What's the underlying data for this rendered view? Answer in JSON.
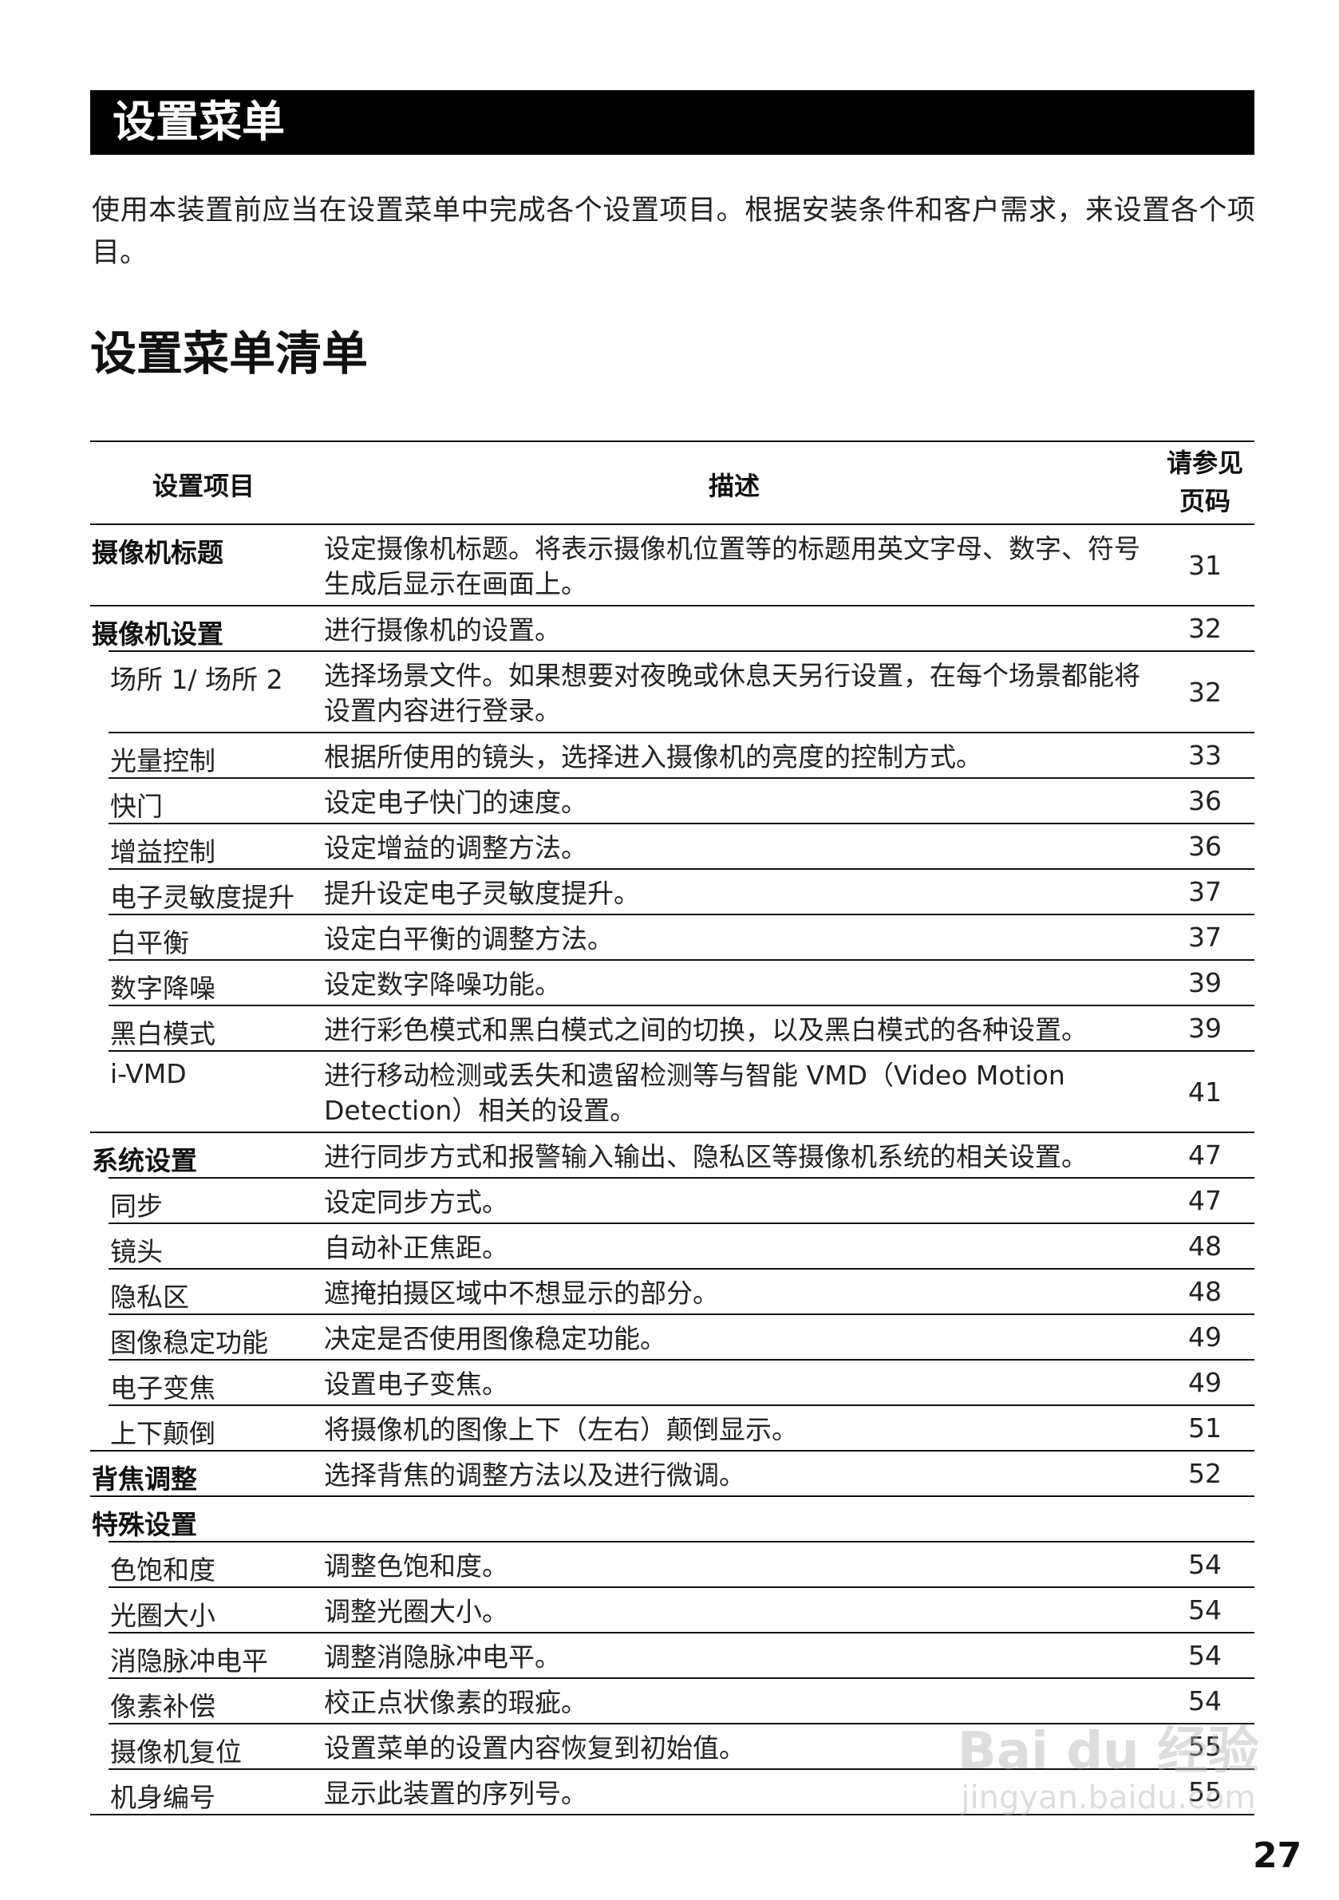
{
  "header": {
    "title": "设置菜单"
  },
  "intro": "使用本装置前应当在设置菜单中完成各个设置项目。根据安装条件和客户需求，来设置各个项目。",
  "section_title": "设置菜单清单",
  "table": {
    "columns": [
      "设置项目",
      "描述",
      "请参见页码"
    ],
    "rows": [
      {
        "level": "main",
        "item": "摄像机标题",
        "desc": "设定摄像机标题。将表示摄像机位置等的标题用英文字母、数字、符号生成后显示在画面上。",
        "page": "31",
        "lines": 2
      },
      {
        "level": "main",
        "item": "摄像机设置",
        "desc": "进行摄像机的设置。",
        "page": "32",
        "lines": 1
      },
      {
        "level": "sub",
        "item": "场所 1/ 场所 2",
        "desc": "选择场景文件。如果想要对夜晚或休息天另行设置，在每个场景都能将设置内容进行登录。",
        "page": "32",
        "lines": 2
      },
      {
        "level": "sub",
        "item": "光量控制",
        "desc": "根据所使用的镜头，选择进入摄像机的亮度的控制方式。",
        "page": "33",
        "lines": 1
      },
      {
        "level": "sub",
        "item": "快门",
        "desc": "设定电子快门的速度。",
        "page": "36",
        "lines": 1
      },
      {
        "level": "sub",
        "item": "增益控制",
        "desc": "设定增益的调整方法。",
        "page": "36",
        "lines": 1
      },
      {
        "level": "sub",
        "item": "电子灵敏度提升",
        "desc": "提升设定电子灵敏度提升。",
        "page": "37",
        "lines": 1
      },
      {
        "level": "sub",
        "item": "白平衡",
        "desc": "设定白平衡的调整方法。",
        "page": "37",
        "lines": 1
      },
      {
        "level": "sub",
        "item": "数字降噪",
        "desc": "设定数字降噪功能。",
        "page": "39",
        "lines": 1
      },
      {
        "level": "sub",
        "item": "黑白模式",
        "desc": "进行彩色模式和黑白模式之间的切换，以及黑白模式的各种设置。",
        "page": "39",
        "lines": 1
      },
      {
        "level": "sub",
        "item": "i-VMD",
        "desc": "进行移动检测或丢失和遗留检测等与智能 VMD（Video Motion Detection）相关的设置。",
        "page": "41",
        "lines": 2
      },
      {
        "level": "main",
        "item": "系统设置",
        "desc": "进行同步方式和报警输入输出、隐私区等摄像机系统的相关设置。",
        "page": "47",
        "lines": 1
      },
      {
        "level": "sub",
        "item": "同步",
        "desc": "设定同步方式。",
        "page": "47",
        "lines": 1
      },
      {
        "level": "sub",
        "item": "镜头",
        "desc": "自动补正焦距。",
        "page": "48",
        "lines": 1
      },
      {
        "level": "sub",
        "item": "隐私区",
        "desc": "遮掩拍摄区域中不想显示的部分。",
        "page": "48",
        "lines": 1
      },
      {
        "level": "sub",
        "item": "图像稳定功能",
        "desc": "决定是否使用图像稳定功能。",
        "page": "49",
        "lines": 1
      },
      {
        "level": "sub",
        "item": "电子变焦",
        "desc": "设置电子变焦。",
        "page": "49",
        "lines": 1
      },
      {
        "level": "sub",
        "item": "上下颠倒",
        "desc": "将摄像机的图像上下（左右）颠倒显示。",
        "page": "51",
        "lines": 1
      },
      {
        "level": "main",
        "item": "背焦调整",
        "desc": "选择背焦的调整方法以及进行微调。",
        "page": "52",
        "lines": 1
      },
      {
        "level": "main",
        "item": "特殊设置",
        "desc": "",
        "page": "",
        "lines": 1
      },
      {
        "level": "sub",
        "item": "色饱和度",
        "desc": "调整色饱和度。",
        "page": "54",
        "lines": 1
      },
      {
        "level": "sub",
        "item": "光圈大小",
        "desc": "调整光圈大小。",
        "page": "54",
        "lines": 1
      },
      {
        "level": "sub",
        "item": "消隐脉冲电平",
        "desc": "调整消隐脉冲电平。",
        "page": "54",
        "lines": 1
      },
      {
        "level": "sub",
        "item": "像素补偿",
        "desc": "校正点状像素的瑕疵。",
        "page": "54",
        "lines": 1
      },
      {
        "level": "sub",
        "item": "摄像机复位",
        "desc": "设置菜单的设置内容恢复到初始值。",
        "page": "55",
        "lines": 1
      },
      {
        "level": "sub",
        "item": "机身编号",
        "desc": "显示此装置的序列号。",
        "page": "55",
        "lines": 1
      }
    ]
  },
  "page_number": "27",
  "watermark": {
    "line1": "Bai du 经验",
    "line2": "jingyan.baidu.com"
  }
}
